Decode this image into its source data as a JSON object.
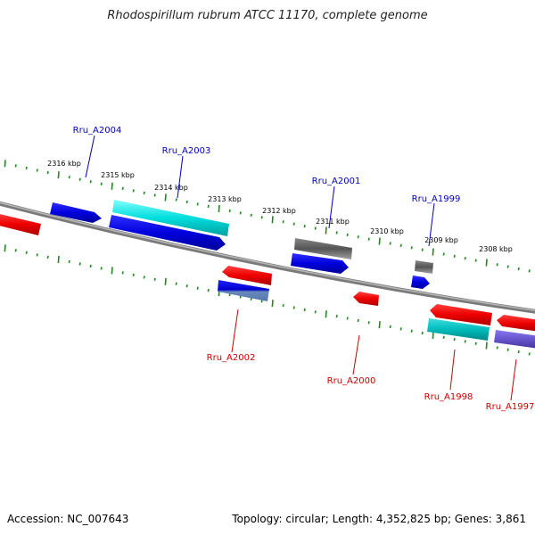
{
  "title": "Rhodospirillum rubrum ATCC 11170, complete genome",
  "footer": {
    "accession": "Accession: NC_007643",
    "summary": "Topology: circular; Length: 4,352,825 bp; Genes: 3,861"
  },
  "colors": {
    "backbone": "#8c8c8c",
    "ticks": "#1e8a1e",
    "forward_label": "#0000bb",
    "reverse_label": "#cc0000"
  },
  "scale": {
    "unit": "kbp",
    "labels": [
      "2316 kbp",
      "2315 kbp",
      "2314 kbp",
      "2313 kbp",
      "2312 kbp",
      "2311 kbp",
      "2310 kbp",
      "2309 kbp",
      "2308 kbp"
    ]
  },
  "genes": [
    {
      "name": "Rru_A2004",
      "strand": "forward",
      "color": "#0000dd"
    },
    {
      "name": "Rru_A2003",
      "strand": "forward",
      "color": "#00dddd"
    },
    {
      "name": "Rru_A2001",
      "strand": "forward",
      "color": "#555555"
    },
    {
      "name": "Rru_A1999",
      "strand": "forward",
      "color": "#555555"
    },
    {
      "name": "Rru_A2002",
      "strand": "reverse",
      "color": "#0000dd"
    },
    {
      "name": "Rru_A2000",
      "strand": "reverse",
      "color": "#ee0000"
    },
    {
      "name": "Rru_A1998",
      "strand": "reverse",
      "color": "#00bbbb"
    },
    {
      "name": "Rru_A1997",
      "strand": "reverse",
      "color": "#6655cc"
    }
  ]
}
